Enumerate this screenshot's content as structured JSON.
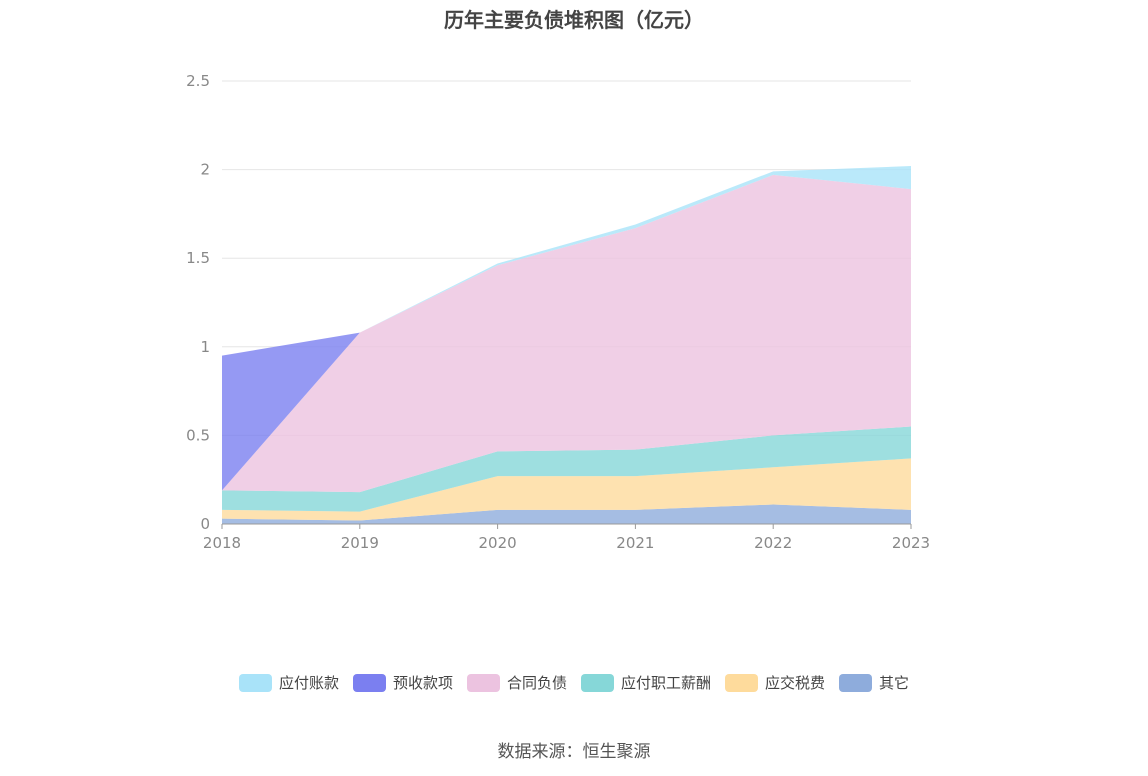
{
  "title": "历年主要负债堆积图（亿元）",
  "source": "数据来源：恒生聚源",
  "colors": {
    "axis": "#999999",
    "grid": "#e6e6e6"
  },
  "chart_data": {
    "type": "area",
    "stacked": true,
    "title": "历年主要负债堆积图（亿元）",
    "categories": [
      "2018",
      "2019",
      "2020",
      "2021",
      "2022",
      "2023"
    ],
    "ylim": [
      0,
      2.5
    ],
    "yticks": [
      0,
      0.5,
      1,
      1.5,
      2,
      2.5
    ],
    "ytick_labels": [
      "0",
      "0.5",
      "1",
      "1.5",
      "2",
      "2.5"
    ],
    "grid": true,
    "legend_position": "bottom",
    "series": [
      {
        "name": "其它",
        "color": "#8eacdc",
        "values": [
          0.03,
          0.02,
          0.08,
          0.08,
          0.11,
          0.08
        ]
      },
      {
        "name": "应交税费",
        "color": "#fedb9c",
        "values": [
          0.05,
          0.05,
          0.19,
          0.19,
          0.21,
          0.29
        ]
      },
      {
        "name": "应付职工薪酬",
        "color": "#86d7d8",
        "values": [
          0.11,
          0.11,
          0.14,
          0.15,
          0.18,
          0.18
        ]
      },
      {
        "name": "合同负债",
        "color": "#ecc3e0",
        "values": [
          0,
          0.9,
          1.05,
          1.25,
          1.47,
          1.34
        ]
      },
      {
        "name": "预收款项",
        "color": "#7b7ff0",
        "values": [
          0.76,
          0,
          0,
          0,
          0,
          0
        ]
      },
      {
        "name": "应付账款",
        "color": "#a9e3f9",
        "values": [
          0,
          0,
          0.01,
          0.02,
          0.02,
          0.13
        ]
      }
    ],
    "legend_order": [
      "应付账款",
      "预收款项",
      "合同负债",
      "应付职工薪酬",
      "应交税费",
      "其它"
    ]
  }
}
